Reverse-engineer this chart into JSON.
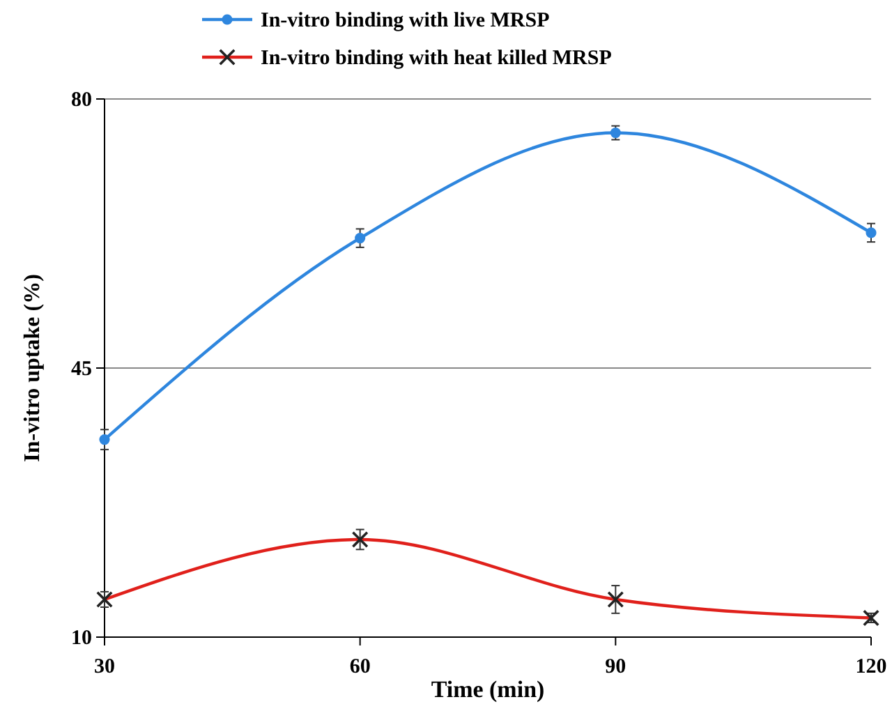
{
  "chart_data": {
    "type": "line",
    "xlabel": "Time (min)",
    "ylabel": "In-vitro uptake (%)",
    "x": [
      30,
      60,
      90,
      120
    ],
    "xlim": [
      30,
      120
    ],
    "xticks": [
      30,
      60,
      90,
      120
    ],
    "ylim": [
      10,
      80
    ],
    "yticks": [
      10,
      45,
      80
    ],
    "grid": "y",
    "legend": "top",
    "line_style": "solid",
    "series": [
      {
        "name": "In-vitro binding with live MRSP",
        "color": "#2e86de",
        "marker": "circle",
        "values": [
          35.7,
          61.9,
          75.6,
          62.6
        ],
        "errors": [
          1.3,
          1.2,
          0.9,
          1.2
        ]
      },
      {
        "name": "In-vitro binding with heat killed MRSP",
        "color": "#e0201b",
        "marker": "cross",
        "values": [
          14.9,
          22.7,
          14.9,
          12.5
        ],
        "errors": [
          1,
          1.3,
          1.8,
          0.6
        ]
      }
    ]
  }
}
